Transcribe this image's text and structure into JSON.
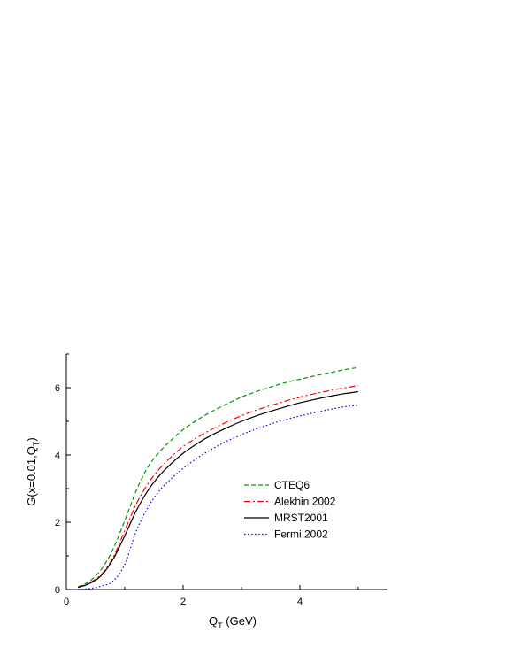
{
  "chart_data": {
    "type": "line",
    "xlabel": {
      "main": "Q",
      "sub": "T",
      "unit": " (GeV)"
    },
    "ylabel": {
      "main": "G(x=0.01,Q",
      "sub": "T",
      "close": ")"
    },
    "xlim": [
      0,
      5.5
    ],
    "ylim": [
      0,
      7
    ],
    "xticks": [
      0,
      2,
      4
    ],
    "yticks": [
      0,
      2,
      4,
      6
    ],
    "xtick_labels": [
      "0",
      "2",
      "4"
    ],
    "ytick_labels": [
      "0",
      "2",
      "4",
      "6"
    ],
    "grid": false,
    "legend_position": "center-right",
    "x": [
      0.2,
      0.4,
      0.6,
      0.8,
      1.0,
      1.2,
      1.4,
      1.6,
      1.8,
      2.0,
      2.25,
      2.5,
      2.75,
      3.0,
      3.25,
      3.5,
      3.75,
      4.0,
      4.25,
      4.5,
      4.75,
      5.0
    ],
    "series": [
      {
        "name": "CTEQ6",
        "color": "#009900",
        "dash": "dashed",
        "values": [
          0.08,
          0.25,
          0.6,
          1.2,
          2.05,
          2.95,
          3.65,
          4.1,
          4.45,
          4.75,
          5.05,
          5.3,
          5.52,
          5.72,
          5.88,
          6.02,
          6.15,
          6.25,
          6.35,
          6.44,
          6.53,
          6.6
        ]
      },
      {
        "name": "Alekhin 2002",
        "color": "#ff0000",
        "dash": "dashdot",
        "values": [
          0.07,
          0.2,
          0.45,
          0.95,
          1.75,
          2.55,
          3.15,
          3.6,
          3.95,
          4.25,
          4.53,
          4.77,
          4.98,
          5.17,
          5.33,
          5.47,
          5.6,
          5.72,
          5.82,
          5.91,
          5.99,
          6.06
        ]
      },
      {
        "name": "MRST2001",
        "color": "#000000",
        "dash": "solid",
        "values": [
          0.06,
          0.18,
          0.42,
          0.9,
          1.6,
          2.35,
          2.95,
          3.4,
          3.75,
          4.05,
          4.35,
          4.6,
          4.81,
          5.0,
          5.16,
          5.3,
          5.43,
          5.55,
          5.65,
          5.74,
          5.82,
          5.88
        ]
      },
      {
        "name": "Fermi 2002",
        "color": "#0000ff",
        "dash": "dotted",
        "values": [
          0.0,
          0.03,
          0.1,
          0.25,
          0.75,
          1.75,
          2.45,
          2.95,
          3.3,
          3.6,
          3.92,
          4.18,
          4.41,
          4.6,
          4.77,
          4.92,
          5.05,
          5.16,
          5.26,
          5.35,
          5.43,
          5.48
        ]
      }
    ]
  }
}
